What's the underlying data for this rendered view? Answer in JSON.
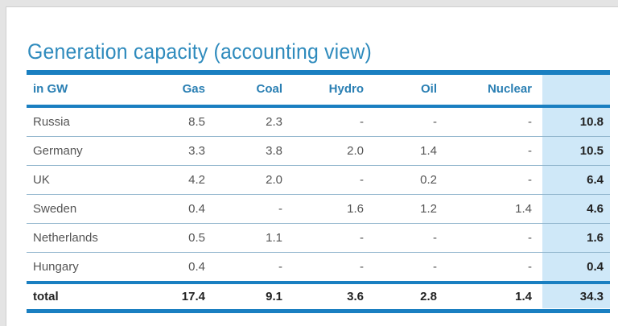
{
  "title": "Generation capacity (accounting view)",
  "table": {
    "headers": [
      "in GW",
      "Gas",
      "Coal",
      "Hydro",
      "Oil",
      "Nuclear",
      ""
    ],
    "rows": [
      [
        "Russia",
        "8.5",
        "2.3",
        "-",
        "-",
        "-",
        "10.8"
      ],
      [
        "Germany",
        "3.3",
        "3.8",
        "2.0",
        "1.4",
        "-",
        "10.5"
      ],
      [
        "UK",
        "4.2",
        "2.0",
        "-",
        "0.2",
        "-",
        "6.4"
      ],
      [
        "Sweden",
        "0.4",
        "-",
        "1.6",
        "1.2",
        "1.4",
        "4.6"
      ],
      [
        "Netherlands",
        "0.5",
        "1.1",
        "-",
        "-",
        "-",
        "1.6"
      ],
      [
        "Hungary",
        "0.4",
        "-",
        "-",
        "-",
        "-",
        "0.4"
      ]
    ],
    "total": [
      "total",
      "17.4",
      "9.1",
      "3.6",
      "2.8",
      "1.4",
      "34.3"
    ]
  },
  "colors": {
    "accent": "#1a7fc1",
    "title": "#2f8bbd",
    "total_column": "#cfe8f8"
  }
}
